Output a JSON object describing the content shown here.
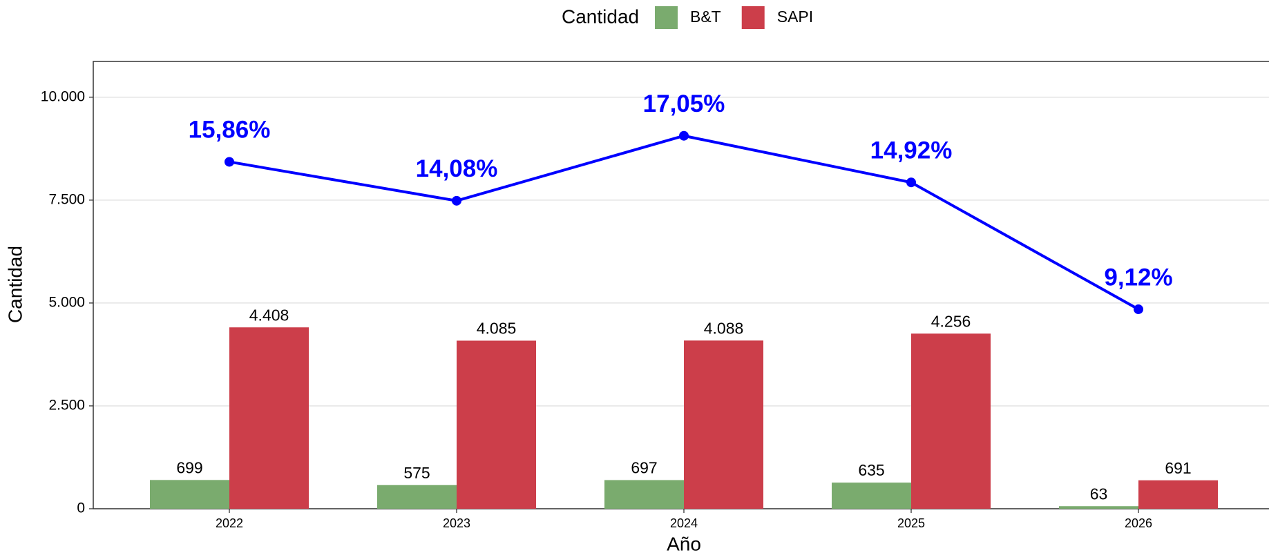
{
  "chart_data": {
    "type": "bar",
    "x_label": "Año",
    "y_label": "Cantidad",
    "legend_title": "Cantidad",
    "categories": [
      "2022",
      "2023",
      "2024",
      "2025",
      "2026"
    ],
    "series": [
      {
        "name": "B&T",
        "color": "#7aab6e",
        "values": [
          699,
          575,
          697,
          635,
          63
        ]
      },
      {
        "name": "SAPI",
        "color": "#cc3e4a",
        "values": [
          4408,
          4085,
          4088,
          4256,
          691
        ],
        "value_labels": [
          "4.408",
          "4.085",
          "4.088",
          "4.256",
          "691"
        ]
      },
      {
        "type": "line",
        "axis": "y2",
        "color": "#0000ff",
        "values": [
          15.86,
          14.08,
          17.05,
          14.92,
          9.12
        ],
        "value_labels": [
          "15,86%",
          "14,08%",
          "17,05%",
          "14,92%",
          "9,12%"
        ]
      }
    ],
    "ylim": [
      0,
      10870
    ],
    "yticks": [
      0,
      {
        "value": 2500,
        "label": "2.500"
      },
      {
        "value": 5000,
        "label": "5.000"
      },
      {
        "value": 7500,
        "label": "7.500"
      },
      {
        "value": 10000,
        "label": "10.000"
      }
    ],
    "y2lim": [
      0,
      20.45
    ],
    "grid": true,
    "legend_position": "top"
  }
}
